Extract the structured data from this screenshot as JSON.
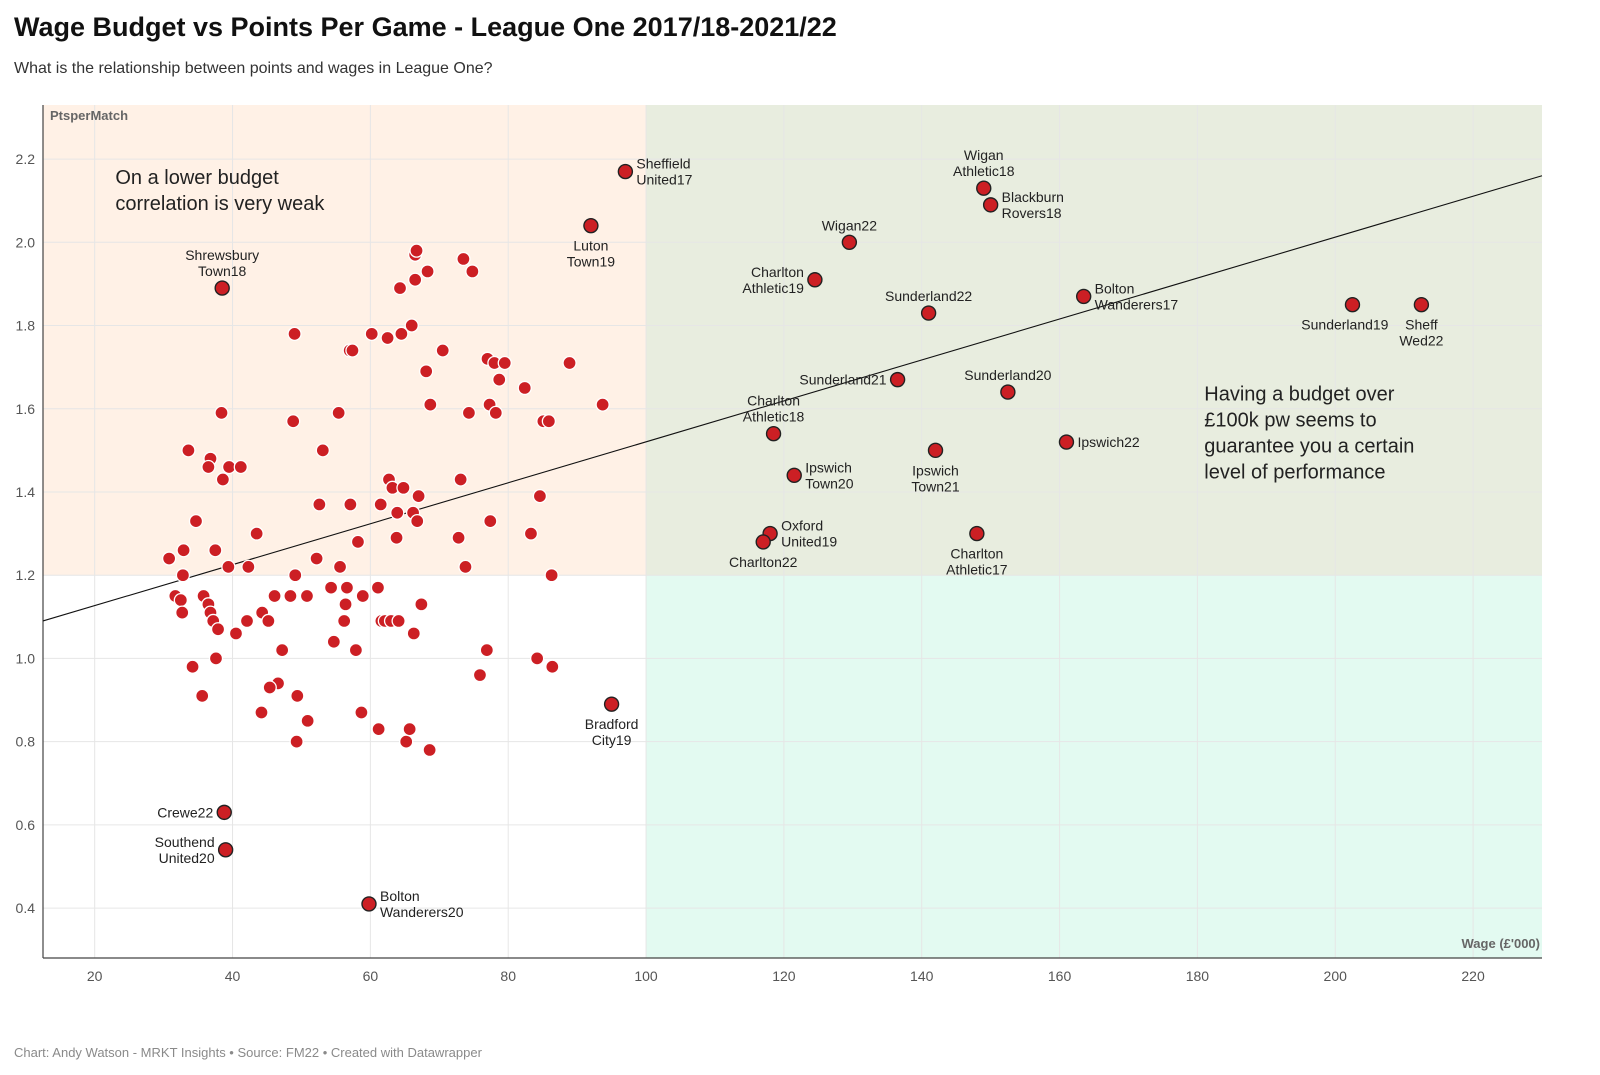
{
  "header": {
    "title": "Wage Budget vs Points Per Game - League One 2017/18-2021/22",
    "subtitle": "What is the relationship between points and wages in League One?"
  },
  "footer": {
    "credit": "Chart: Andy Watson - MRKT Insights • Source: FM22 • Created with Datawrapper"
  },
  "colors": {
    "point": "#cc1f24",
    "point_stroke": "#ffffff",
    "labeled_point_stroke": "#222222",
    "region_low_budget": "#fff1e6",
    "region_high_good": "#e8eddf",
    "region_high_poor": "#e3faf1",
    "trend": "#111111",
    "grid": "#e6e6e6"
  },
  "chart_data": {
    "type": "scatter",
    "title": "Wage Budget vs Points Per Game - League One 2017/18-2021/22",
    "xlabel": "Wage (£'000)",
    "ylabel": "PtsperMatch",
    "xlim": [
      12.5,
      230
    ],
    "ylim": [
      0.28,
      2.33
    ],
    "xticks": [
      20,
      40,
      60,
      80,
      100,
      120,
      140,
      160,
      180,
      200,
      220
    ],
    "yticks": [
      0.4,
      0.6,
      0.8,
      1.0,
      1.2,
      1.4,
      1.6,
      1.8,
      2.0,
      2.2
    ],
    "regions": [
      {
        "x": [
          12.5,
          100
        ],
        "y": [
          1.2,
          2.33
        ],
        "name": "low-budget-good"
      },
      {
        "x": [
          100,
          230
        ],
        "y": [
          1.2,
          2.33
        ],
        "name": "high-budget-good"
      },
      {
        "x": [
          100,
          230
        ],
        "y": [
          0.28,
          1.2
        ],
        "name": "high-budget-poor"
      }
    ],
    "trendline": {
      "x": [
        12.5,
        230
      ],
      "y": [
        1.09,
        2.16
      ]
    },
    "annotations": [
      {
        "name": "low-budget-note",
        "lines": [
          "On a lower budget",
          "correlation is very weak"
        ],
        "x": 23,
        "y": 2.14
      },
      {
        "name": "high-budget-note",
        "lines": [
          "Having a budget over",
          "£100k pw seems to",
          "guarantee you a certain",
          "level of performance"
        ],
        "x": 181,
        "y": 1.62
      }
    ],
    "labeled_points": [
      {
        "x": 97,
        "y": 2.17,
        "lines": [
          "Sheffield",
          "United17"
        ],
        "pos": "right"
      },
      {
        "x": 92,
        "y": 2.04,
        "lines": [
          "Luton",
          "Town19"
        ],
        "pos": "below"
      },
      {
        "x": 38.5,
        "y": 1.89,
        "lines": [
          "Shrewsbury",
          "Town18"
        ],
        "pos": "above"
      },
      {
        "x": 149,
        "y": 2.13,
        "lines": [
          "Wigan",
          "Athletic18"
        ],
        "pos": "above"
      },
      {
        "x": 150,
        "y": 2.09,
        "lines": [
          "Blackburn",
          "Rovers18"
        ],
        "pos": "right"
      },
      {
        "x": 129.5,
        "y": 2.0,
        "lines": [
          "Wigan22"
        ],
        "pos": "above"
      },
      {
        "x": 124.5,
        "y": 1.91,
        "lines": [
          "Charlton",
          "Athletic19"
        ],
        "pos": "left"
      },
      {
        "x": 141,
        "y": 1.83,
        "lines": [
          "Sunderland22"
        ],
        "pos": "above"
      },
      {
        "x": 163.5,
        "y": 1.87,
        "lines": [
          "Bolton",
          "Wanderers17"
        ],
        "pos": "right"
      },
      {
        "x": 202.5,
        "y": 1.85,
        "lines": [
          "Sunderland19"
        ],
        "pos": "belowleft"
      },
      {
        "x": 212.5,
        "y": 1.85,
        "lines": [
          "Sheff",
          "Wed22"
        ],
        "pos": "below"
      },
      {
        "x": 136.5,
        "y": 1.67,
        "lines": [
          "Sunderland21"
        ],
        "pos": "left"
      },
      {
        "x": 152.5,
        "y": 1.64,
        "lines": [
          "Sunderland20"
        ],
        "pos": "above"
      },
      {
        "x": 118.5,
        "y": 1.54,
        "lines": [
          "Charlton",
          "Athletic18"
        ],
        "pos": "above"
      },
      {
        "x": 142,
        "y": 1.5,
        "lines": [
          "Ipswich",
          "Town21"
        ],
        "pos": "below"
      },
      {
        "x": 161,
        "y": 1.52,
        "lines": [
          "Ipswich22"
        ],
        "pos": "right"
      },
      {
        "x": 121.5,
        "y": 1.44,
        "lines": [
          "Ipswich",
          "Town20"
        ],
        "pos": "right"
      },
      {
        "x": 118,
        "y": 1.3,
        "lines": [
          "Oxford",
          "United19"
        ],
        "pos": "right"
      },
      {
        "x": 117,
        "y": 1.28,
        "lines": [
          "Charlton22"
        ],
        "pos": "below"
      },
      {
        "x": 148,
        "y": 1.3,
        "lines": [
          "Charlton",
          "Athletic17"
        ],
        "pos": "below"
      },
      {
        "x": 95,
        "y": 0.89,
        "lines": [
          "Bradford",
          "City19"
        ],
        "pos": "below"
      },
      {
        "x": 38.8,
        "y": 0.63,
        "lines": [
          "Crewe22"
        ],
        "pos": "left"
      },
      {
        "x": 39,
        "y": 0.54,
        "lines": [
          "Southend",
          "United20"
        ],
        "pos": "left"
      },
      {
        "x": 59.8,
        "y": 0.41,
        "lines": [
          "Bolton",
          "Wanderers20"
        ],
        "pos": "right"
      }
    ],
    "points": [
      [
        30.8,
        1.24
      ],
      [
        32.9,
        1.26
      ],
      [
        32.8,
        1.2
      ],
      [
        31.7,
        1.15
      ],
      [
        32.5,
        1.14
      ],
      [
        32.7,
        1.11
      ],
      [
        34.7,
        1.33
      ],
      [
        33.6,
        1.5
      ],
      [
        35.8,
        1.15
      ],
      [
        36.5,
        1.13
      ],
      [
        36.8,
        1.11
      ],
      [
        37.2,
        1.09
      ],
      [
        37.5,
        1.26
      ],
      [
        37.9,
        1.07
      ],
      [
        36.8,
        1.48
      ],
      [
        36.5,
        1.46
      ],
      [
        38.4,
        1.59
      ],
      [
        38.6,
        1.43
      ],
      [
        39.5,
        1.46
      ],
      [
        41.2,
        1.46
      ],
      [
        39.4,
        1.22
      ],
      [
        37.6,
        1.0
      ],
      [
        34.2,
        0.98
      ],
      [
        35.6,
        0.91
      ],
      [
        40.5,
        1.06
      ],
      [
        42.1,
        1.09
      ],
      [
        42.3,
        1.22
      ],
      [
        43.5,
        1.3
      ],
      [
        44.3,
        1.11
      ],
      [
        45.2,
        1.09
      ],
      [
        46.1,
        1.15
      ],
      [
        47.2,
        1.02
      ],
      [
        46.6,
        0.94
      ],
      [
        45.4,
        0.93
      ],
      [
        44.2,
        0.87
      ],
      [
        48.4,
        1.15
      ],
      [
        49.1,
        1.2
      ],
      [
        49.4,
        0.91
      ],
      [
        48.8,
        1.57
      ],
      [
        49.0,
        1.78
      ],
      [
        49.3,
        0.8
      ],
      [
        50.9,
        0.85
      ],
      [
        50.8,
        1.15
      ],
      [
        52.2,
        1.24
      ],
      [
        52.6,
        1.37
      ],
      [
        53.1,
        1.5
      ],
      [
        54.3,
        1.17
      ],
      [
        54.7,
        1.04
      ],
      [
        55.4,
        1.59
      ],
      [
        55.6,
        1.22
      ],
      [
        56.2,
        1.09
      ],
      [
        56.4,
        1.13
      ],
      [
        56.6,
        1.17
      ],
      [
        57.1,
        1.37
      ],
      [
        57.0,
        1.74
      ],
      [
        57.4,
        1.74
      ],
      [
        57.9,
        1.02
      ],
      [
        58.2,
        1.28
      ],
      [
        58.9,
        1.15
      ],
      [
        58.7,
        0.87
      ],
      [
        60.2,
        1.78
      ],
      [
        61.1,
        1.17
      ],
      [
        61.2,
        0.83
      ],
      [
        61.5,
        1.37
      ],
      [
        61.6,
        1.09
      ],
      [
        62.1,
        1.09
      ],
      [
        62.5,
        1.77
      ],
      [
        62.7,
        1.43
      ],
      [
        63.0,
        1.09
      ],
      [
        63.2,
        1.41
      ],
      [
        63.9,
        1.35
      ],
      [
        63.8,
        1.29
      ],
      [
        64.1,
        1.09
      ],
      [
        64.5,
        1.78
      ],
      [
        64.3,
        1.89
      ],
      [
        64.8,
        1.41
      ],
      [
        65.2,
        0.8
      ],
      [
        65.7,
        0.83
      ],
      [
        66.0,
        1.8
      ],
      [
        66.2,
        1.35
      ],
      [
        66.3,
        1.06
      ],
      [
        66.5,
        1.91
      ],
      [
        66.5,
        1.97
      ],
      [
        66.7,
        1.98
      ],
      [
        66.8,
        1.33
      ],
      [
        67.0,
        1.39
      ],
      [
        67.4,
        1.13
      ],
      [
        68.1,
        1.69
      ],
      [
        68.3,
        1.93
      ],
      [
        68.7,
        1.61
      ],
      [
        68.6,
        0.78
      ],
      [
        70.5,
        1.74
      ],
      [
        72.8,
        1.29
      ],
      [
        73.1,
        1.43
      ],
      [
        73.5,
        1.96
      ],
      [
        73.8,
        1.22
      ],
      [
        74.3,
        1.59
      ],
      [
        74.8,
        1.93
      ],
      [
        75.9,
        0.96
      ],
      [
        76.9,
        1.02
      ],
      [
        77.0,
        1.72
      ],
      [
        77.3,
        1.61
      ],
      [
        77.4,
        1.33
      ],
      [
        78.0,
        1.71
      ],
      [
        78.2,
        1.59
      ],
      [
        78.7,
        1.67
      ],
      [
        79.5,
        1.71
      ],
      [
        82.4,
        1.65
      ],
      [
        83.3,
        1.3
      ],
      [
        84.2,
        1.0
      ],
      [
        84.6,
        1.39
      ],
      [
        85.1,
        1.57
      ],
      [
        85.9,
        1.57
      ],
      [
        86.3,
        1.2
      ],
      [
        86.4,
        0.98
      ],
      [
        88.9,
        1.71
      ],
      [
        93.7,
        1.61
      ]
    ]
  }
}
